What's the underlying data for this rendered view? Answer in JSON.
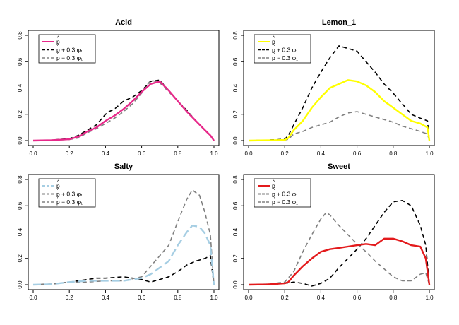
{
  "chart_data": [
    {
      "type": "line",
      "title": "Acid",
      "xlim": [
        0,
        1
      ],
      "ylim": [
        0,
        0.8
      ],
      "xticks": [
        "0.0",
        "0.2",
        "0.4",
        "0.6",
        "0.8",
        "1.0"
      ],
      "yticks": [
        "0.0",
        "0.2",
        "0.4",
        "0.6",
        "0.8"
      ],
      "legend_position": "top-left",
      "colors": {
        "main": "#e7298a",
        "plus": "#000000",
        "minus": "#808080"
      },
      "legend": [
        {
          "hat": "^",
          "base": "p",
          "suffix": ""
        },
        {
          "hat": "^",
          "base": "p",
          "suffix": " + 0.3 φ₁"
        },
        {
          "hat": "^",
          "base": "p",
          "suffix": " − 0.3 φ₁"
        }
      ],
      "series": [
        {
          "style": "solid",
          "x": [
            0,
            0.1,
            0.2,
            0.25,
            0.3,
            0.35,
            0.4,
            0.45,
            0.5,
            0.55,
            0.6,
            0.65,
            0.7,
            0.75,
            0.8,
            0.85,
            0.9,
            0.95,
            0.98,
            1.0
          ],
          "y": [
            0,
            0.003,
            0.01,
            0.03,
            0.07,
            0.1,
            0.15,
            0.19,
            0.24,
            0.3,
            0.37,
            0.43,
            0.45,
            0.38,
            0.3,
            0.22,
            0.15,
            0.08,
            0.04,
            0
          ]
        },
        {
          "style": "dashed",
          "x": [
            0,
            0.1,
            0.2,
            0.25,
            0.3,
            0.35,
            0.4,
            0.42,
            0.45,
            0.5,
            0.55,
            0.6,
            0.65,
            0.7,
            0.75,
            0.8,
            0.85,
            0.9,
            0.95,
            0.98,
            1.0
          ],
          "y": [
            0,
            0.004,
            0.015,
            0.04,
            0.08,
            0.12,
            0.2,
            0.22,
            0.24,
            0.3,
            0.33,
            0.38,
            0.45,
            0.46,
            0.38,
            0.3,
            0.23,
            0.15,
            0.08,
            0.04,
            0
          ]
        },
        {
          "style": "dashed",
          "x": [
            0,
            0.1,
            0.2,
            0.25,
            0.3,
            0.35,
            0.4,
            0.45,
            0.5,
            0.55,
            0.6,
            0.65,
            0.7,
            0.75,
            0.8,
            0.85,
            0.9,
            0.95,
            0.98,
            1.0
          ],
          "y": [
            0,
            0.002,
            0.008,
            0.02,
            0.06,
            0.09,
            0.13,
            0.17,
            0.22,
            0.28,
            0.36,
            0.46,
            0.44,
            0.37,
            0.3,
            0.22,
            0.15,
            0.08,
            0.04,
            0
          ]
        }
      ]
    },
    {
      "type": "line",
      "title": "Lemon_1",
      "xlim": [
        0,
        1
      ],
      "ylim": [
        0,
        0.8
      ],
      "xticks": [
        "0.0",
        "0.2",
        "0.4",
        "0.6",
        "0.8",
        "1.0"
      ],
      "yticks": [
        "0.0",
        "0.2",
        "0.4",
        "0.6",
        "0.8"
      ],
      "legend_position": "top-left",
      "colors": {
        "main": "#ffff00",
        "plus": "#000000",
        "minus": "#808080"
      },
      "legend": [
        {
          "hat": "^",
          "base": "p",
          "suffix": ""
        },
        {
          "hat": "^",
          "base": "p",
          "suffix": " + 0.3 φ₁"
        },
        {
          "hat": "^",
          "base": "p",
          "suffix": " − 0.3 φ₁"
        }
      ],
      "series": [
        {
          "style": "solid",
          "x": [
            0,
            0.1,
            0.2,
            0.22,
            0.25,
            0.3,
            0.35,
            0.4,
            0.45,
            0.5,
            0.55,
            0.6,
            0.65,
            0.7,
            0.75,
            0.8,
            0.85,
            0.9,
            0.95,
            0.99,
            1.0
          ],
          "y": [
            0,
            0.002,
            0.005,
            0.02,
            0.08,
            0.15,
            0.25,
            0.33,
            0.4,
            0.43,
            0.46,
            0.45,
            0.42,
            0.37,
            0.3,
            0.25,
            0.2,
            0.15,
            0.13,
            0.1,
            0
          ]
        },
        {
          "style": "dashed",
          "x": [
            0,
            0.1,
            0.2,
            0.22,
            0.25,
            0.3,
            0.35,
            0.4,
            0.45,
            0.5,
            0.55,
            0.6,
            0.65,
            0.7,
            0.75,
            0.8,
            0.85,
            0.9,
            0.95,
            0.99,
            1.0
          ],
          "y": [
            0,
            0.004,
            0.01,
            0.04,
            0.12,
            0.25,
            0.4,
            0.52,
            0.63,
            0.72,
            0.7,
            0.68,
            0.6,
            0.52,
            0.43,
            0.36,
            0.28,
            0.2,
            0.17,
            0.15,
            0
          ]
        },
        {
          "style": "dashed",
          "x": [
            0,
            0.1,
            0.2,
            0.22,
            0.25,
            0.3,
            0.35,
            0.4,
            0.45,
            0.5,
            0.55,
            0.6,
            0.65,
            0.7,
            0.75,
            0.8,
            0.85,
            0.9,
            0.95,
            0.99,
            1.0
          ],
          "y": [
            0,
            0.001,
            0.003,
            0.01,
            0.05,
            0.07,
            0.1,
            0.12,
            0.14,
            0.18,
            0.21,
            0.22,
            0.2,
            0.18,
            0.16,
            0.14,
            0.11,
            0.09,
            0.07,
            0.05,
            0
          ]
        }
      ]
    },
    {
      "type": "line",
      "title": "Salty",
      "xlim": [
        0,
        1
      ],
      "ylim": [
        0,
        0.8
      ],
      "xticks": [
        "0.0",
        "0.2",
        "0.4",
        "0.6",
        "0.8",
        "1.0"
      ],
      "yticks": [
        "0.0",
        "0.2",
        "0.4",
        "0.6",
        "0.8"
      ],
      "legend_position": "top-left",
      "colors": {
        "main": "#a6cee3",
        "plus": "#000000",
        "minus": "#808080"
      },
      "legend": [
        {
          "hat": "^",
          "base": "p",
          "suffix": ""
        },
        {
          "hat": "^",
          "base": "p",
          "suffix": " + 0.3 φ₁"
        },
        {
          "hat": "^",
          "base": "p",
          "suffix": " − 0.3 φ₁"
        }
      ],
      "series": [
        {
          "style": "longdash",
          "x": [
            0,
            0.1,
            0.2,
            0.3,
            0.4,
            0.5,
            0.6,
            0.65,
            0.7,
            0.75,
            0.8,
            0.85,
            0.88,
            0.92,
            0.95,
            0.98,
            1.0
          ],
          "y": [
            0,
            0.004,
            0.02,
            0.03,
            0.03,
            0.03,
            0.05,
            0.08,
            0.13,
            0.18,
            0.3,
            0.4,
            0.45,
            0.44,
            0.39,
            0.3,
            0
          ]
        },
        {
          "style": "dashed",
          "x": [
            0,
            0.1,
            0.2,
            0.3,
            0.35,
            0.4,
            0.5,
            0.55,
            0.6,
            0.65,
            0.7,
            0.75,
            0.8,
            0.85,
            0.9,
            0.95,
            0.98,
            1.0
          ],
          "y": [
            0,
            0.005,
            0.02,
            0.04,
            0.05,
            0.05,
            0.06,
            0.05,
            0.04,
            0.02,
            0.04,
            0.06,
            0.1,
            0.15,
            0.18,
            0.2,
            0.22,
            0
          ]
        },
        {
          "style": "dashed",
          "x": [
            0,
            0.1,
            0.2,
            0.3,
            0.4,
            0.5,
            0.6,
            0.65,
            0.7,
            0.75,
            0.8,
            0.85,
            0.88,
            0.92,
            0.95,
            0.98,
            1.0
          ],
          "y": [
            0,
            0.003,
            0.02,
            0.02,
            0.03,
            0.03,
            0.06,
            0.14,
            0.22,
            0.3,
            0.48,
            0.65,
            0.72,
            0.68,
            0.55,
            0.38,
            0
          ]
        }
      ]
    },
    {
      "type": "line",
      "title": "Sweet",
      "xlim": [
        0,
        1
      ],
      "ylim": [
        0,
        0.8
      ],
      "xticks": [
        "0.0",
        "0.2",
        "0.4",
        "0.6",
        "0.8",
        "1.0"
      ],
      "yticks": [
        "0.0",
        "0.2",
        "0.4",
        "0.6",
        "0.8"
      ],
      "legend_position": "top-left",
      "colors": {
        "main": "#e31a1c",
        "plus": "#000000",
        "minus": "#808080"
      },
      "legend": [
        {
          "hat": "^",
          "base": "p",
          "suffix": ""
        },
        {
          "hat": "^",
          "base": "p",
          "suffix": " + 0.3 φ₁"
        },
        {
          "hat": "^",
          "base": "p",
          "suffix": " − 0.3 φ₁"
        }
      ],
      "series": [
        {
          "style": "solid",
          "x": [
            0,
            0.1,
            0.2,
            0.22,
            0.25,
            0.3,
            0.35,
            0.4,
            0.45,
            0.5,
            0.55,
            0.6,
            0.65,
            0.7,
            0.75,
            0.8,
            0.85,
            0.9,
            0.95,
            0.98,
            1.0
          ],
          "y": [
            0,
            0.002,
            0.01,
            0.02,
            0.07,
            0.14,
            0.2,
            0.25,
            0.27,
            0.28,
            0.29,
            0.3,
            0.31,
            0.3,
            0.35,
            0.35,
            0.33,
            0.3,
            0.29,
            0.2,
            0
          ]
        },
        {
          "style": "dashed",
          "x": [
            0,
            0.1,
            0.2,
            0.25,
            0.3,
            0.35,
            0.4,
            0.45,
            0.5,
            0.55,
            0.6,
            0.65,
            0.7,
            0.75,
            0.8,
            0.85,
            0.9,
            0.95,
            0.98,
            1.0
          ],
          "y": [
            0,
            0,
            0.01,
            0.02,
            0.01,
            -0.01,
            0.01,
            0.05,
            0.13,
            0.2,
            0.27,
            0.35,
            0.45,
            0.55,
            0.63,
            0.64,
            0.6,
            0.45,
            0.3,
            0
          ]
        },
        {
          "style": "dashed",
          "x": [
            0,
            0.1,
            0.2,
            0.25,
            0.3,
            0.35,
            0.4,
            0.43,
            0.45,
            0.5,
            0.55,
            0.6,
            0.65,
            0.7,
            0.75,
            0.8,
            0.85,
            0.9,
            0.95,
            0.98,
            1.0
          ],
          "y": [
            0,
            0.005,
            0.02,
            0.1,
            0.25,
            0.38,
            0.5,
            0.55,
            0.53,
            0.45,
            0.38,
            0.31,
            0.25,
            0.18,
            0.12,
            0.06,
            0.03,
            0.03,
            0.08,
            0.09,
            0
          ]
        }
      ]
    }
  ]
}
